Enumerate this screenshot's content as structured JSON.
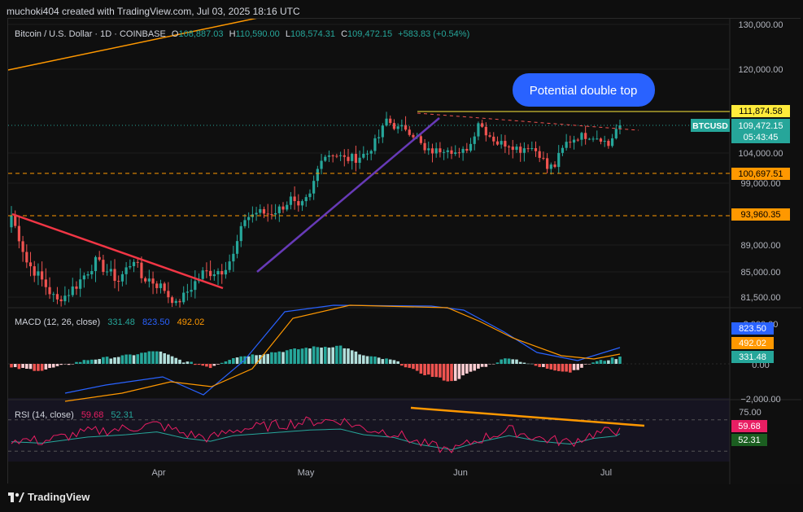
{
  "header": {
    "caption": "muchoki404 created with TradingView.com, Jul 03, 2025 18:16 UTC"
  },
  "legend": {
    "symbol": "Bitcoin / U.S. Dollar · 1D · COINBASE",
    "o_label": "O",
    "o_value": "108,887.03",
    "h_label": "H",
    "h_value": "110,590.00",
    "l_label": "L",
    "l_value": "108,574.31",
    "c_label": "C",
    "c_value": "109,472.15",
    "change": "+583.83 (+0.54%)"
  },
  "annotation": {
    "text": "Potential double top"
  },
  "price_axis": {
    "ticks": [
      "130,000.00",
      "120,000.00",
      "104,000.00",
      "99,000.00",
      "89,000.00",
      "85,000.00",
      "81,500.00"
    ],
    "resistance": "111,874.58",
    "support_1": "100,697.51",
    "support_2": "93,960.35",
    "symbol_tag": "BTCUSD",
    "last_price": "109,472.15",
    "countdown": "05:43:45"
  },
  "macd": {
    "label": "MACD (12, 26, close)",
    "hist_value": "331.48",
    "macd_value": "823.50",
    "signal_value": "492.02",
    "ticks": [
      "2,000.00",
      "0.00",
      "−2,000.00"
    ]
  },
  "rsi": {
    "label": "RSI (14, close)",
    "rsi_value": "59.68",
    "ma_value": "52.31",
    "ticks": [
      "75.00"
    ]
  },
  "time_axis": {
    "ticks": [
      "Apr",
      "May",
      "Jun",
      "Jul"
    ]
  },
  "footer": {
    "brand": "TradingView"
  },
  "colors": {
    "up": "#26a69a",
    "down": "#ef5350",
    "macd_line": "#2962ff",
    "signal_line": "#ff9800",
    "rsi_line": "#e91e63",
    "rsi_ma": "#26a69a",
    "resistance": "#ffeb3b",
    "support": "#ff9800",
    "downtrend_line": "#f23645",
    "uptrend_line": "#673ab7",
    "badge": "#2962ff"
  },
  "chart_data": {
    "type": "candlestick",
    "title": "Bitcoin / U.S. Dollar · 1D · COINBASE",
    "y_range": [
      80000,
      131000
    ],
    "x_ticks": [
      "Apr",
      "May",
      "Jun",
      "Jul"
    ],
    "anchors": [
      {
        "i": 0,
        "c": 94000
      },
      {
        "i": 4,
        "c": 86500
      },
      {
        "i": 8,
        "c": 83800
      },
      {
        "i": 12,
        "c": 80700
      },
      {
        "i": 17,
        "c": 83200
      },
      {
        "i": 22,
        "c": 86500
      },
      {
        "i": 28,
        "c": 83800
      },
      {
        "i": 32,
        "c": 87000
      },
      {
        "i": 34,
        "c": 84200
      },
      {
        "i": 36,
        "c": 84000
      },
      {
        "i": 40,
        "c": 82600
      },
      {
        "i": 43,
        "c": 79900
      },
      {
        "i": 46,
        "c": 82300
      },
      {
        "i": 50,
        "c": 84800
      },
      {
        "i": 55,
        "c": 85300
      },
      {
        "i": 58,
        "c": 87400
      },
      {
        "i": 61,
        "c": 93500
      },
      {
        "i": 64,
        "c": 94500
      },
      {
        "i": 67,
        "c": 94300
      },
      {
        "i": 70,
        "c": 95000
      },
      {
        "i": 73,
        "c": 96500
      },
      {
        "i": 75,
        "c": 94800
      },
      {
        "i": 78,
        "c": 97000
      },
      {
        "i": 81,
        "c": 103500
      },
      {
        "i": 84,
        "c": 104000
      },
      {
        "i": 87,
        "c": 103000
      },
      {
        "i": 90,
        "c": 103200
      },
      {
        "i": 93,
        "c": 104000
      },
      {
        "i": 96,
        "c": 107200
      },
      {
        "i": 98,
        "c": 110500
      },
      {
        "i": 101,
        "c": 108800
      },
      {
        "i": 103,
        "c": 109000
      },
      {
        "i": 106,
        "c": 107000
      },
      {
        "i": 108,
        "c": 104300
      },
      {
        "i": 111,
        "c": 104400
      },
      {
        "i": 114,
        "c": 105200
      },
      {
        "i": 117,
        "c": 103500
      },
      {
        "i": 120,
        "c": 105800
      },
      {
        "i": 122,
        "c": 110200
      },
      {
        "i": 124,
        "c": 108200
      },
      {
        "i": 127,
        "c": 106000
      },
      {
        "i": 130,
        "c": 105800
      },
      {
        "i": 133,
        "c": 104700
      },
      {
        "i": 135,
        "c": 105500
      },
      {
        "i": 138,
        "c": 104000
      },
      {
        "i": 140,
        "c": 101500
      },
      {
        "i": 142,
        "c": 102000
      },
      {
        "i": 145,
        "c": 106000
      },
      {
        "i": 148,
        "c": 107300
      },
      {
        "i": 151,
        "c": 107500
      },
      {
        "i": 154,
        "c": 107000
      },
      {
        "i": 156,
        "c": 105500
      },
      {
        "i": 158,
        "c": 108700
      },
      {
        "i": 159,
        "c": 109472
      }
    ],
    "levels": [
      111874.58,
      100697.51,
      93960.35
    ],
    "last_close": 109472.15,
    "macd_last": {
      "macd": 823.5,
      "signal": 492.02,
      "hist": 331.48
    },
    "rsi_last": {
      "rsi": 59.68,
      "ma": 52.31
    }
  }
}
